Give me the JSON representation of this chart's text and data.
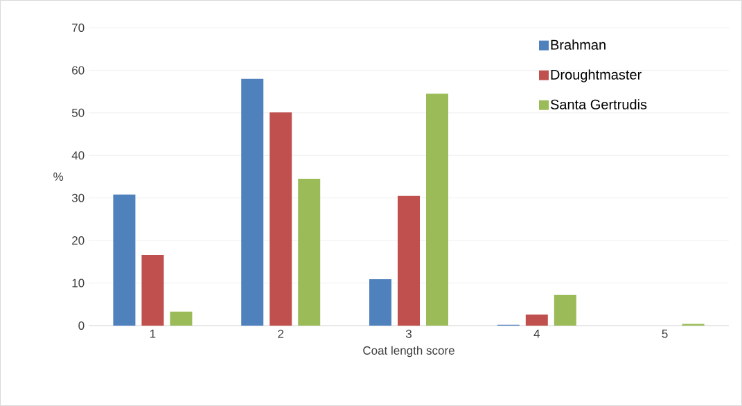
{
  "chart_data": {
    "type": "bar",
    "xlabel": "Coat length score",
    "ylabel": "%",
    "categories": [
      "1",
      "2",
      "3",
      "4",
      "5"
    ],
    "series": [
      {
        "name": "Brahman",
        "color": "#4f81bd",
        "values": [
          30.8,
          58,
          10.9,
          0.2,
          0
        ]
      },
      {
        "name": "Droughtmaster",
        "color": "#c0504d",
        "values": [
          16.6,
          50.1,
          30.5,
          2.6,
          0
        ]
      },
      {
        "name": "Santa Gertrudis",
        "color": "#9bbb59",
        "values": [
          3.3,
          34.5,
          54.5,
          7.2,
          0.4
        ]
      }
    ],
    "ylim": [
      0,
      70
    ],
    "yticks": [
      0,
      10,
      20,
      30,
      40,
      50,
      60,
      70
    ],
    "grid": "y",
    "legend": "top right"
  }
}
